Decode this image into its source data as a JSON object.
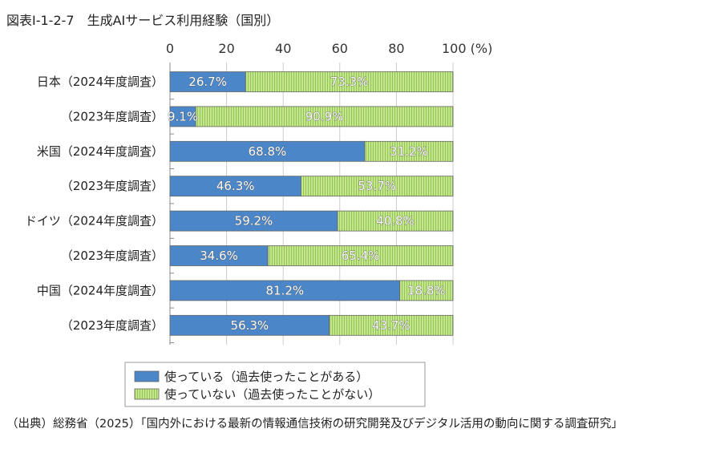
{
  "chart_data": {
    "type": "bar",
    "stacked": true,
    "orientation": "horizontal",
    "title": "図表Ⅰ-1-2-7　生成AIサービス利用経験（国別）",
    "xlabel": "(%)",
    "xlim": [
      0,
      100
    ],
    "xticks": [
      0,
      20,
      40,
      60,
      80,
      100
    ],
    "xtick_labels": [
      "0",
      "20",
      "40",
      "60",
      "80",
      "100 (%)"
    ],
    "grid": true,
    "categories": [
      "日本（2024年度調査）",
      "（2023年度調査）",
      "米国（2024年度調査）",
      "（2023年度調査）",
      "ドイツ（2024年度調査）",
      "（2023年度調査）",
      "中国（2024年度調査）",
      "（2023年度調査）"
    ],
    "series": [
      {
        "name": "使っている（過去使ったことがある）",
        "color": "#4a86c8",
        "values": [
          26.7,
          9.1,
          68.8,
          46.3,
          59.2,
          34.6,
          81.2,
          56.3
        ],
        "labels": [
          "26.7%",
          "9.1%",
          "68.8%",
          "46.3%",
          "59.2%",
          "34.6%",
          "81.2%",
          "56.3%"
        ]
      },
      {
        "name": "使っていない（過去使ったことがない）",
        "color": "#b5dc79",
        "values": [
          73.3,
          90.9,
          31.2,
          53.7,
          40.8,
          65.4,
          18.8,
          43.7
        ],
        "labels": [
          "73.3%",
          "90.9%",
          "31.2%",
          "53.7%",
          "40.8%",
          "65.4%",
          "18.8%",
          "43.7%"
        ]
      }
    ],
    "legend_placement": "bottom"
  },
  "source": "（出典）総務省（2025）「国内外における最新の情報通信技術の研究開発及びデジタル活用の動向に関する調査研究」"
}
